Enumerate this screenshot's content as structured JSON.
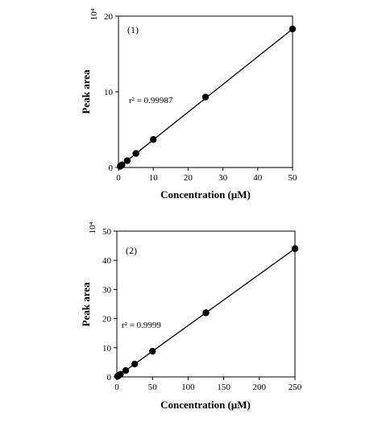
{
  "chart_data": [
    {
      "type": "scatter",
      "panel_label": "(1)",
      "xlabel": "Concentration (μM)",
      "ylabel": "Peak area",
      "y_exponent_label": "10⁴",
      "annotation": "r² = 0.99987",
      "xlim": [
        0,
        50
      ],
      "ylim": [
        0,
        20
      ],
      "xticks": [
        0,
        10,
        20,
        30,
        40,
        50
      ],
      "yticks": [
        0,
        10,
        20
      ],
      "grid": false,
      "legend": "none",
      "fit": {
        "x": [
          0,
          50
        ],
        "y": [
          0,
          18.3
        ]
      },
      "series": [
        {
          "x": [
            0.5,
            1,
            2.5,
            5,
            10,
            25,
            50
          ],
          "y": [
            0.15,
            0.35,
            0.9,
            1.85,
            3.7,
            9.3,
            18.3
          ]
        }
      ]
    },
    {
      "type": "scatter",
      "panel_label": "(2)",
      "xlabel": "Concentration (μM)",
      "ylabel": "Peak area",
      "y_exponent_label": "10⁴",
      "annotation": "r² = 0.9999",
      "xlim": [
        0,
        250
      ],
      "ylim": [
        0,
        50
      ],
      "xticks": [
        0,
        50,
        100,
        150,
        200,
        250
      ],
      "yticks": [
        0,
        10,
        20,
        30,
        40,
        50
      ],
      "grid": false,
      "legend": "none",
      "fit": {
        "x": [
          0,
          250
        ],
        "y": [
          0,
          44
        ]
      },
      "series": [
        {
          "x": [
            1,
            2.5,
            5,
            12.5,
            25,
            50,
            125,
            250
          ],
          "y": [
            0.2,
            0.45,
            0.9,
            2.2,
            4.4,
            8.8,
            22,
            44
          ]
        }
      ]
    }
  ]
}
